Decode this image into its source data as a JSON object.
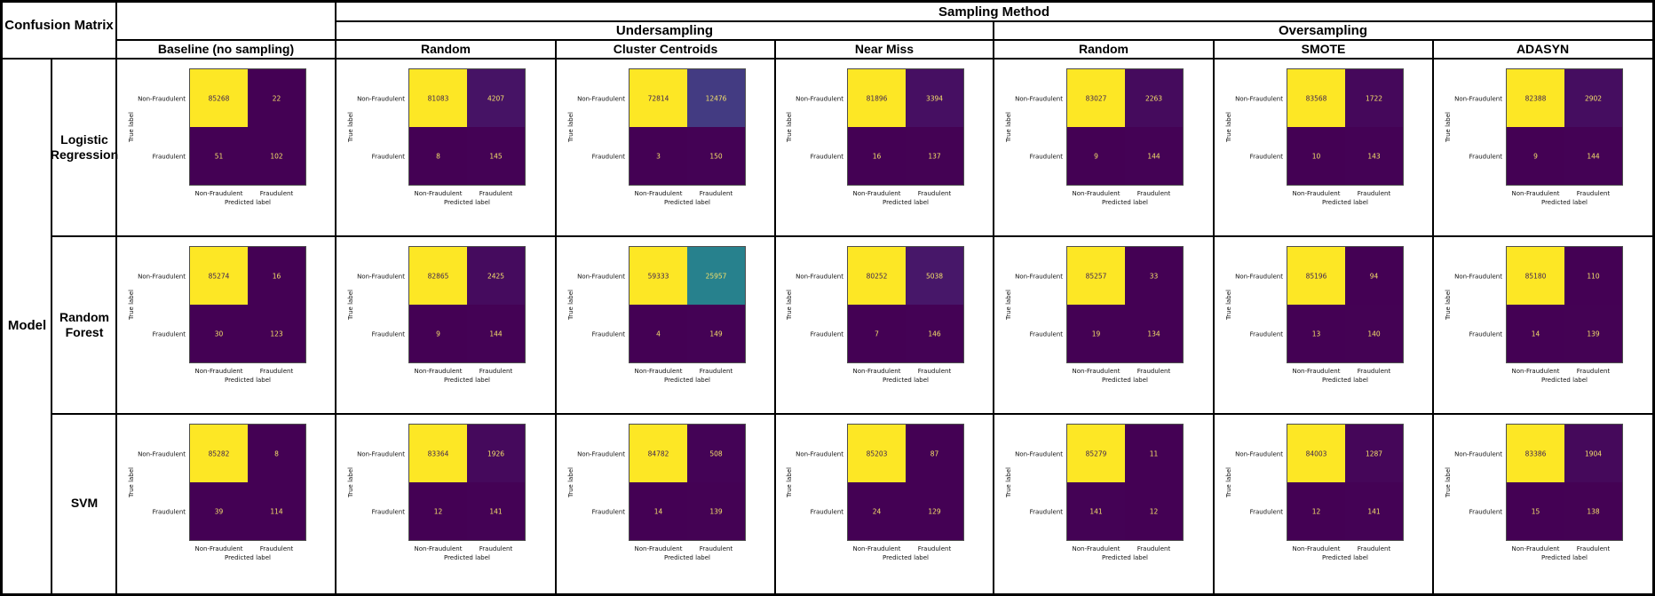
{
  "headers": {
    "corner": "Confusion Matrix",
    "sampling_method": "Sampling Method",
    "undersampling": "Undersampling",
    "oversampling": "Oversampling",
    "model": "Model"
  },
  "columns": [
    "Baseline (no sampling)",
    "Random",
    "Cluster Centroids",
    "Near Miss",
    "Random",
    "SMOTE",
    "ADASYN"
  ],
  "rows": [
    "Logistic\nRegression",
    "Random\nForest",
    "SVM"
  ],
  "axis": {
    "xlabel": "Predicted label",
    "ylabel": "True label",
    "classes": [
      "Non-Fraudulent",
      "Fraudulent"
    ]
  },
  "colormap": "viridis",
  "chart_data": [
    {
      "type": "heatmap",
      "row": "Logistic Regression",
      "column": "Baseline (no sampling)",
      "values": [
        [
          85268,
          22
        ],
        [
          51,
          102
        ]
      ]
    },
    {
      "type": "heatmap",
      "row": "Logistic Regression",
      "column": "Undersampling - Random",
      "values": [
        [
          81083,
          4207
        ],
        [
          8,
          145
        ]
      ]
    },
    {
      "type": "heatmap",
      "row": "Logistic Regression",
      "column": "Undersampling - Cluster Centroids",
      "values": [
        [
          72814,
          12476
        ],
        [
          3,
          150
        ]
      ]
    },
    {
      "type": "heatmap",
      "row": "Logistic Regression",
      "column": "Undersampling - Near Miss",
      "values": [
        [
          81896,
          3394
        ],
        [
          16,
          137
        ]
      ]
    },
    {
      "type": "heatmap",
      "row": "Logistic Regression",
      "column": "Oversampling - Random",
      "values": [
        [
          83027,
          2263
        ],
        [
          9,
          144
        ]
      ]
    },
    {
      "type": "heatmap",
      "row": "Logistic Regression",
      "column": "Oversampling - SMOTE",
      "values": [
        [
          83568,
          1722
        ],
        [
          10,
          143
        ]
      ]
    },
    {
      "type": "heatmap",
      "row": "Logistic Regression",
      "column": "Oversampling - ADASYN",
      "values": [
        [
          82388,
          2902
        ],
        [
          9,
          144
        ]
      ]
    },
    {
      "type": "heatmap",
      "row": "Random Forest",
      "column": "Baseline (no sampling)",
      "values": [
        [
          85274,
          16
        ],
        [
          30,
          123
        ]
      ]
    },
    {
      "type": "heatmap",
      "row": "Random Forest",
      "column": "Undersampling - Random",
      "values": [
        [
          82865,
          2425
        ],
        [
          9,
          144
        ]
      ]
    },
    {
      "type": "heatmap",
      "row": "Random Forest",
      "column": "Undersampling - Cluster Centroids",
      "values": [
        [
          59333,
          25957
        ],
        [
          4,
          149
        ]
      ]
    },
    {
      "type": "heatmap",
      "row": "Random Forest",
      "column": "Undersampling - Near Miss",
      "values": [
        [
          80252,
          5038
        ],
        [
          7,
          146
        ]
      ]
    },
    {
      "type": "heatmap",
      "row": "Random Forest",
      "column": "Oversampling - Random",
      "values": [
        [
          85257,
          33
        ],
        [
          19,
          134
        ]
      ]
    },
    {
      "type": "heatmap",
      "row": "Random Forest",
      "column": "Oversampling - SMOTE",
      "values": [
        [
          85196,
          94
        ],
        [
          13,
          140
        ]
      ]
    },
    {
      "type": "heatmap",
      "row": "Random Forest",
      "column": "Oversampling - ADASYN",
      "values": [
        [
          85180,
          110
        ],
        [
          14,
          139
        ]
      ]
    },
    {
      "type": "heatmap",
      "row": "SVM",
      "column": "Baseline (no sampling)",
      "values": [
        [
          85282,
          8
        ],
        [
          39,
          114
        ]
      ]
    },
    {
      "type": "heatmap",
      "row": "SVM",
      "column": "Undersampling - Random",
      "values": [
        [
          83364,
          1926
        ],
        [
          12,
          141
        ]
      ]
    },
    {
      "type": "heatmap",
      "row": "SVM",
      "column": "Undersampling - Cluster Centroids",
      "values": [
        [
          84782,
          508
        ],
        [
          14,
          139
        ]
      ]
    },
    {
      "type": "heatmap",
      "row": "SVM",
      "column": "Undersampling - Near Miss",
      "values": [
        [
          85203,
          87
        ],
        [
          24,
          129
        ]
      ]
    },
    {
      "type": "heatmap",
      "row": "SVM",
      "column": "Oversampling - Random",
      "values": [
        [
          85279,
          11
        ],
        [
          141,
          12
        ]
      ]
    },
    {
      "type": "heatmap",
      "row": "SVM",
      "column": "Oversampling - SMOTE",
      "values": [
        [
          84003,
          1287
        ],
        [
          12,
          141
        ]
      ]
    },
    {
      "type": "heatmap",
      "row": "SVM",
      "column": "Oversampling - ADASYN",
      "values": [
        [
          83386,
          1904
        ],
        [
          15,
          138
        ]
      ]
    }
  ]
}
